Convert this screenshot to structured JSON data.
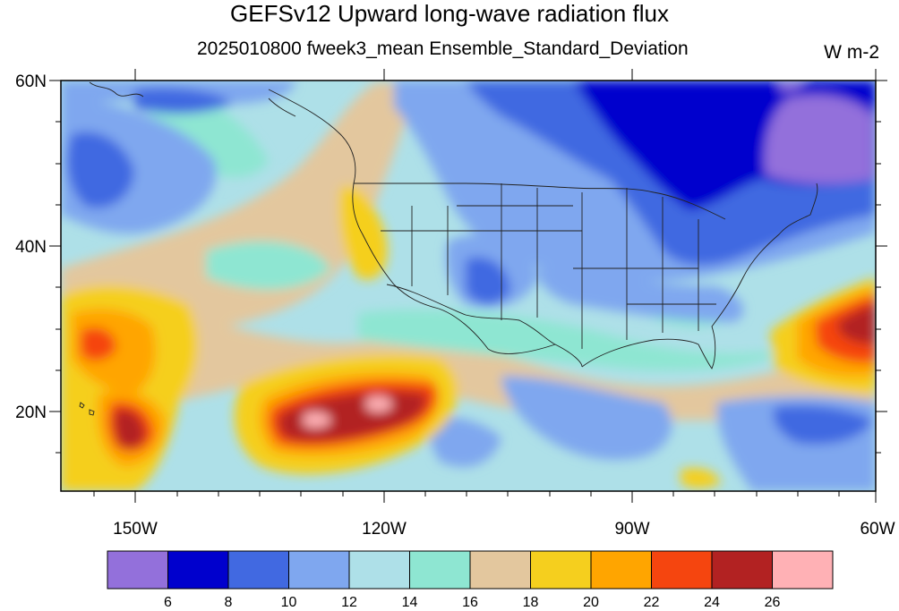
{
  "header": {
    "title": "GEFSv12 Upward long-wave radiation flux",
    "subtitle": "2025010800 fweek3_mean Ensemble_Standard_Deviation",
    "units": "W m-2"
  },
  "map": {
    "lat_labels": [
      "60N",
      "40N",
      "20N"
    ],
    "lon_labels": [
      "150W",
      "120W",
      "90W",
      "60W"
    ]
  },
  "colorbar": {
    "colors": [
      "#9370db",
      "#0000cd",
      "#4169e1",
      "#7fa7ef",
      "#aee0e8",
      "#8ee6d2",
      "#e3c79e",
      "#f5cf1e",
      "#ffa500",
      "#f5450f",
      "#b22222",
      "#ffb1b5"
    ],
    "labels": [
      "6",
      "8",
      "10",
      "12",
      "14",
      "16",
      "18",
      "20",
      "22",
      "24",
      "26"
    ]
  }
}
